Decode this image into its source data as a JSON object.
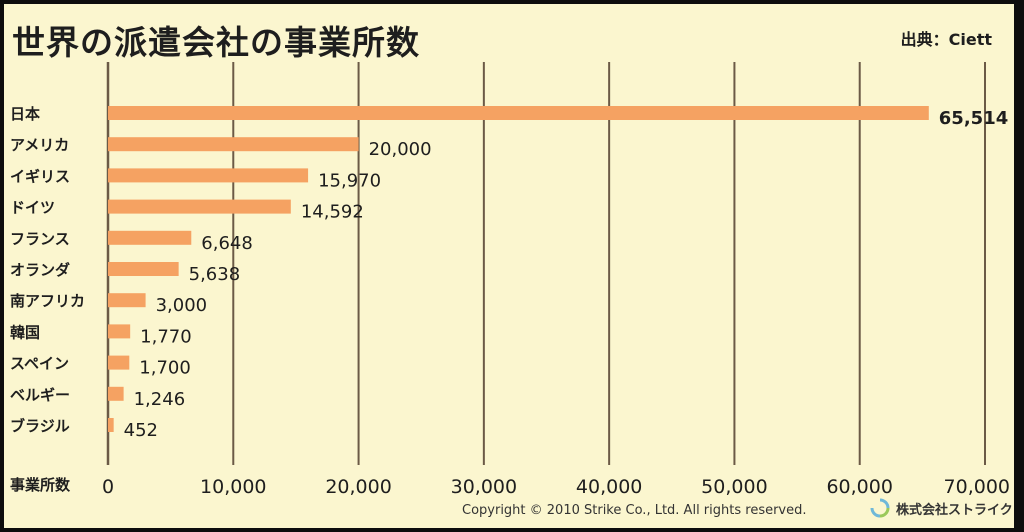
{
  "title": "世界の派遣会社の事業所数",
  "source": "出典：Ciett",
  "copyright": "Copyright © 2010 Strike Co., Ltd. All rights reserved.",
  "company": "株式会社ストライク",
  "colors": {
    "bar": "#f5a262",
    "background": "#fbf6cf",
    "grid": "#6b5a46"
  },
  "chart_data": {
    "type": "bar",
    "orientation": "horizontal",
    "categories": [
      "日本",
      "アメリカ",
      "イギリス",
      "ドイツ",
      "フランス",
      "オランダ",
      "南アフリカ",
      "韓国",
      "スペイン",
      "ベルギー",
      "ブラジル"
    ],
    "values": [
      65514,
      20000,
      15970,
      14592,
      6648,
      5638,
      3000,
      1770,
      1700,
      1246,
      452
    ],
    "value_labels": [
      "65,514",
      "20,000",
      "15,970",
      "14,592",
      "6,648",
      "5,638",
      "3,000",
      "1,770",
      "1,700",
      "1,246",
      "452"
    ],
    "xlabel": "事業所数",
    "xlim": [
      0,
      70000
    ],
    "xticks": [
      0,
      10000,
      20000,
      30000,
      40000,
      50000,
      60000,
      70000
    ],
    "xtick_labels": [
      "0",
      "10,000",
      "20,000",
      "30,000",
      "40,000",
      "50,000",
      "60,000",
      "70,000"
    ],
    "grid": true
  }
}
